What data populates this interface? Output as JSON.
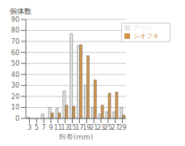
{
  "chart_data": {
    "type": "bar",
    "categories": [
      3,
      5,
      7,
      9,
      11,
      13,
      15,
      17,
      19,
      21,
      23,
      25,
      27,
      29
    ],
    "series": [
      {
        "name": "アサリ",
        "color": "#e8e8e8",
        "values": [
          1,
          0,
          4,
          10,
          9,
          25,
          77,
          66,
          30,
          10,
          4,
          6,
          6,
          10
        ]
      },
      {
        "name": "シオフキ",
        "color": "#d4954a",
        "values": [
          0,
          0,
          0,
          5,
          5,
          12,
          11,
          67,
          57,
          35,
          12,
          23,
          24,
          3
        ]
      }
    ],
    "xlabel": "殻長(mm)",
    "ylabel": "個体数",
    "ylim": [
      0,
      90
    ],
    "yticks": [
      0,
      10,
      20,
      30,
      40,
      50,
      60,
      70,
      80,
      90
    ],
    "grid": true,
    "legend": "upper right"
  }
}
